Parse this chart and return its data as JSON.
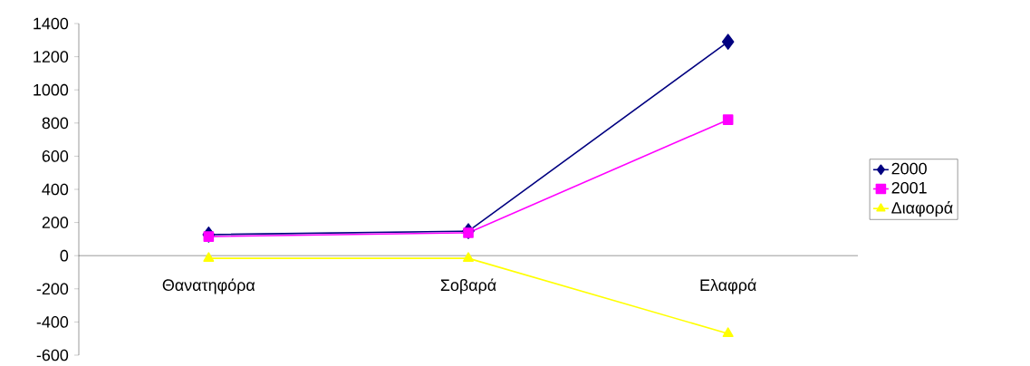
{
  "chart_data": {
    "type": "line",
    "categories": [
      "Θανατηφόρα",
      "Σοβαρά",
      "Ελαφρά"
    ],
    "series": [
      {
        "name": "2000",
        "color": "#000080",
        "marker": "diamond",
        "values": [
          127,
          148,
          1290
        ]
      },
      {
        "name": "2001",
        "color": "#ff00ff",
        "marker": "square",
        "values": [
          115,
          138,
          820
        ]
      },
      {
        "name": "Διαφορά",
        "color": "#ffff00",
        "marker": "triangle",
        "values": [
          -16,
          -16,
          -470
        ]
      }
    ],
    "ylim": [
      -600,
      1400
    ],
    "yticks": [
      -600,
      -400,
      -200,
      0,
      200,
      400,
      600,
      800,
      1000,
      1200,
      1400
    ],
    "grid": false,
    "legend": "right",
    "line_style": "solid"
  }
}
